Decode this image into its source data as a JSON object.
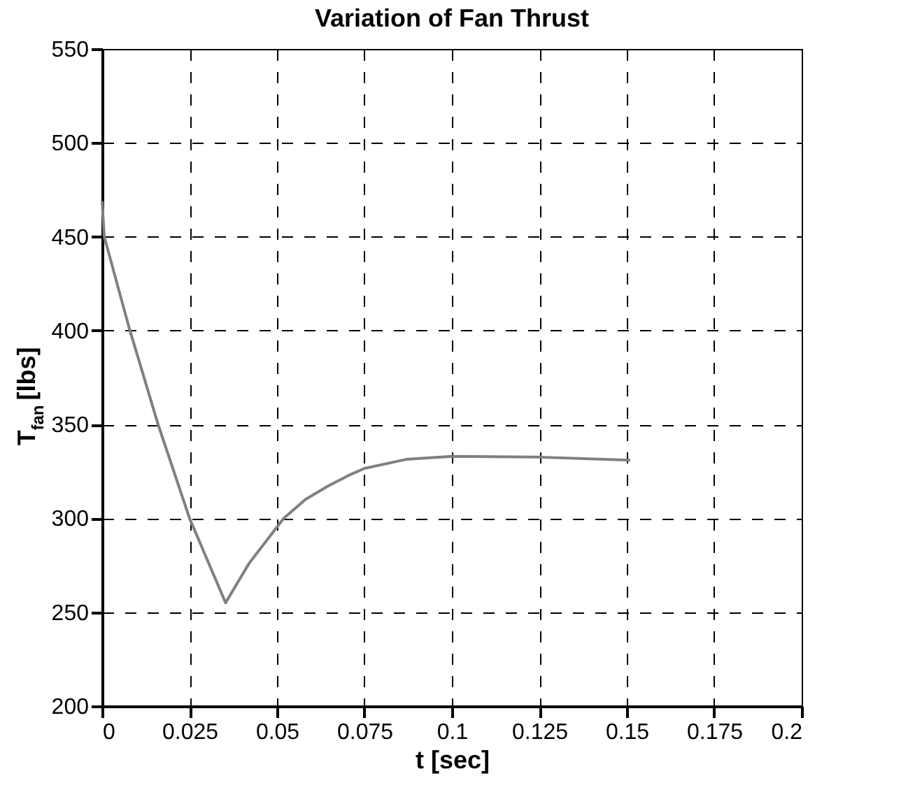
{
  "chart_data": {
    "type": "line",
    "title": "Variation of Fan Thrust",
    "xlabel": "t [sec]",
    "ylabel": "T$_{fan}$ [lbs]",
    "series": [
      {
        "color": "#808080",
        "x": [
          0,
          0.0006,
          0.0078,
          0.016,
          0.025,
          0.0353,
          0.042,
          0.0519,
          0.0581,
          0.0644,
          0.0706,
          0.075,
          0.0869,
          0.1,
          0.125,
          0.151
        ],
        "values": [
          469,
          450,
          401,
          350,
          300,
          255,
          276,
          300,
          310,
          317,
          323,
          326.6,
          331.4,
          333,
          332.6,
          331
        ]
      }
    ],
    "xlim": [
      0,
      0.2
    ],
    "xticks": [
      0,
      0.025,
      0.05,
      0.075,
      0.1,
      0.125,
      0.15,
      0.175,
      0.2
    ],
    "ylim": [
      200,
      550
    ],
    "yticks": [
      200,
      250,
      300,
      350,
      400,
      450,
      500,
      550
    ],
    "grid": true,
    "line_style": "solid"
  }
}
